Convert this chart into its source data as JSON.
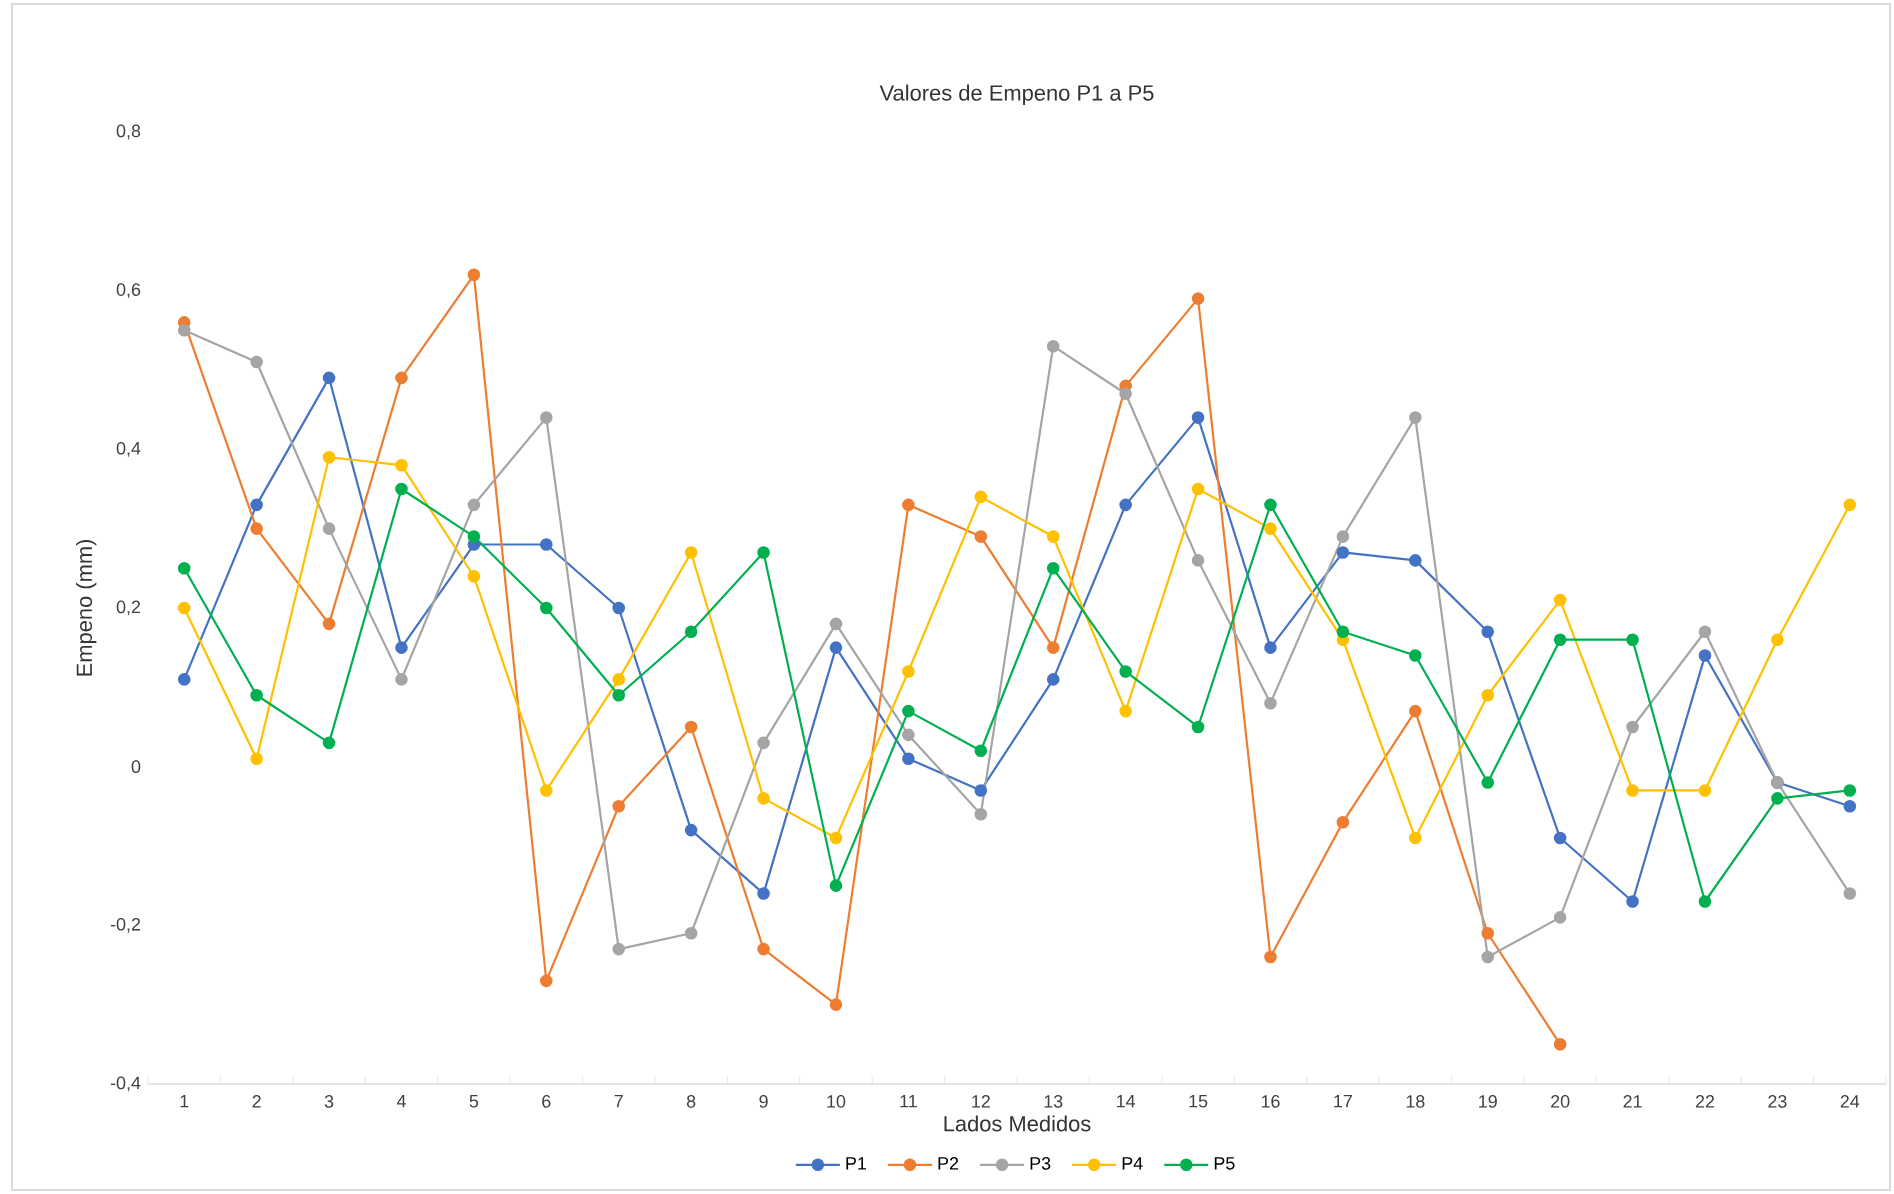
{
  "chart_data": {
    "type": "line",
    "title": "Valores de Empeno P1 a P5",
    "xlabel": "Lados Medidos",
    "ylabel": "Empeno (mm)",
    "categories": [
      "1",
      "2",
      "3",
      "4",
      "5",
      "6",
      "7",
      "8",
      "9",
      "10",
      "11",
      "12",
      "13",
      "14",
      "15",
      "16",
      "17",
      "18",
      "19",
      "20",
      "21",
      "22",
      "23",
      "24"
    ],
    "ylim": [
      -0.4,
      0.8
    ],
    "yticks": [
      {
        "value": -0.4,
        "label": "-0,4"
      },
      {
        "value": -0.2,
        "label": "-0,2"
      },
      0,
      {
        "value": 0.2,
        "label": "0,2"
      },
      {
        "value": 0.4,
        "label": "0,4"
      },
      {
        "value": 0.6,
        "label": "0,6"
      },
      {
        "value": 0.8,
        "label": "0,8"
      }
    ],
    "legend": "bottom",
    "marker": "circle",
    "line_style": "solid",
    "series": [
      {
        "name": "P1",
        "color": "#4472c4",
        "values": [
          0.11,
          0.33,
          0.49,
          0.15,
          0.28,
          0.28,
          0.2,
          -0.08,
          -0.16,
          0.15,
          0.01,
          -0.03,
          0.11,
          0.33,
          0.44,
          0.15,
          0.27,
          0.26,
          0.17,
          -0.09,
          -0.17,
          0.14,
          -0.02,
          -0.05
        ]
      },
      {
        "name": "P2",
        "color": "#ed7d31",
        "values": [
          0.56,
          0.3,
          0.18,
          0.49,
          0.62,
          -0.27,
          -0.05,
          0.05,
          -0.23,
          -0.3,
          0.33,
          0.29,
          0.15,
          0.48,
          0.59,
          -0.24,
          -0.07,
          0.07,
          -0.21,
          -0.35,
          null,
          null,
          null,
          null
        ]
      },
      {
        "name": "P3",
        "color": "#a5a5a5",
        "values": [
          0.55,
          0.51,
          0.3,
          0.11,
          0.33,
          0.44,
          -0.23,
          -0.21,
          0.03,
          0.18,
          0.04,
          -0.06,
          0.53,
          0.47,
          0.26,
          0.08,
          0.29,
          0.44,
          -0.24,
          -0.19,
          0.05,
          0.17,
          -0.02,
          -0.16
        ]
      },
      {
        "name": "P4",
        "color": "#ffc000",
        "values": [
          0.2,
          0.01,
          0.39,
          0.38,
          0.24,
          -0.03,
          0.11,
          0.27,
          -0.04,
          -0.09,
          0.12,
          0.34,
          0.29,
          0.07,
          0.35,
          0.3,
          0.16,
          -0.09,
          0.09,
          0.21,
          -0.03,
          -0.03,
          0.16,
          0.33
        ]
      },
      {
        "name": "P5",
        "color": "#00b050",
        "values": [
          0.25,
          0.09,
          0.03,
          0.35,
          0.29,
          0.2,
          0.09,
          0.17,
          0.27,
          -0.15,
          0.07,
          0.02,
          0.25,
          0.12,
          0.05,
          0.33,
          0.17,
          0.14,
          -0.02,
          0.16,
          0.16,
          -0.17,
          -0.04,
          -0.03
        ]
      }
    ]
  }
}
